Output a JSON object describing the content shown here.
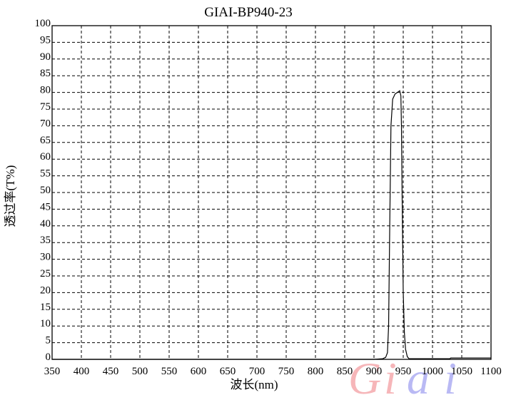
{
  "chart_data": {
    "type": "line",
    "title": "GIAI-BP940-23",
    "xlabel": "波长(nm)",
    "ylabel": "透过率(T%)",
    "xlim": [
      350,
      1100
    ],
    "ylim": [
      0,
      100
    ],
    "xticks": [
      350,
      400,
      450,
      500,
      550,
      600,
      650,
      700,
      750,
      800,
      850,
      900,
      950,
      1000,
      1050,
      1100
    ],
    "yticks": [
      0,
      5,
      10,
      15,
      20,
      25,
      30,
      35,
      40,
      45,
      50,
      55,
      60,
      65,
      70,
      75,
      80,
      85,
      90,
      95,
      100
    ],
    "grid": true,
    "series": [
      {
        "color": "#000000",
        "x": [
          350,
          900,
          915,
          920,
          923,
          925,
          927,
          929,
          932,
          936,
          940,
          944,
          946,
          947,
          948,
          950,
          952,
          954,
          957,
          960,
          1030,
          1031,
          1100
        ],
        "y": [
          0,
          0,
          0.2,
          0.6,
          2,
          10,
          40,
          70,
          78,
          79.5,
          80,
          80.5,
          79,
          70,
          50,
          20,
          8,
          3,
          0.8,
          0.2,
          0.2,
          0.4,
          0.4
        ]
      }
    ],
    "watermark": "Giai",
    "watermark_colors": [
      "#e8303a",
      "#3a3ae0"
    ]
  }
}
